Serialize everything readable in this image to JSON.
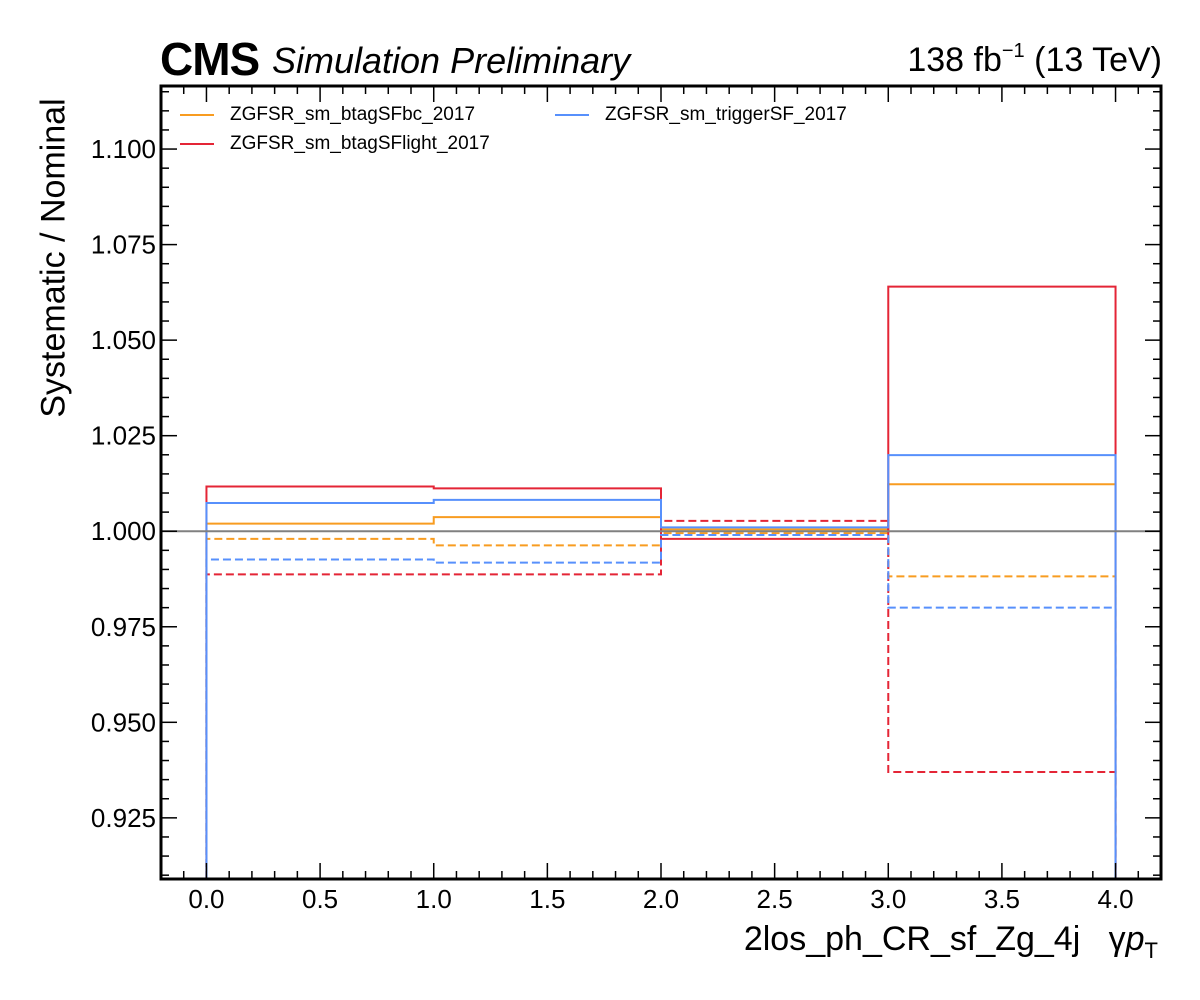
{
  "header": {
    "experiment": "CMS",
    "status": "Simulation Preliminary",
    "lumi_value": "138 fb",
    "lumi_exp": "−1",
    "energy": " (13 TeV)"
  },
  "chart_data": {
    "type": "line",
    "xlabel_main": "2los_ph_CR_sf_Zg_4j",
    "xlabel_var": "γ",
    "xlabel_p": "p",
    "xlabel_sub": "T",
    "ylabel": "Systematic / Nominal",
    "xlim": [
      -0.2,
      4.2
    ],
    "ylim": [
      0.909,
      1.1165
    ],
    "x_ticks": [
      "0.0",
      "0.5",
      "1.0",
      "1.5",
      "2.0",
      "2.5",
      "3.0",
      "3.5",
      "4.0"
    ],
    "y_ticks": [
      "0.925",
      "0.950",
      "0.975",
      "1.000",
      "1.025",
      "1.050",
      "1.075",
      "1.100"
    ],
    "bin_edges": [
      0,
      1,
      2,
      3,
      4
    ],
    "reference_line": 1.0,
    "legend_position": "top-left",
    "grid": false,
    "series": [
      {
        "name": "ZGFSR_sm_btagSFbc_2017",
        "color": "#f89c20",
        "up": [
          1.002,
          1.0037,
          1.0005,
          1.0123
        ],
        "down": [
          0.998,
          0.9963,
          0.9995,
          0.9882
        ]
      },
      {
        "name": "ZGFSR_sm_btagSFlight_2017",
        "color": "#e42536",
        "up": [
          1.0117,
          1.0112,
          0.998,
          1.064
        ],
        "down": [
          0.9887,
          0.9887,
          1.0027,
          0.937
        ]
      },
      {
        "name": "ZGFSR_sm_triggerSF_2017",
        "color": "#5790fc",
        "up": [
          1.0074,
          1.0082,
          1.001,
          1.0199
        ],
        "down": [
          0.9926,
          0.9918,
          0.999,
          0.98
        ]
      }
    ]
  }
}
